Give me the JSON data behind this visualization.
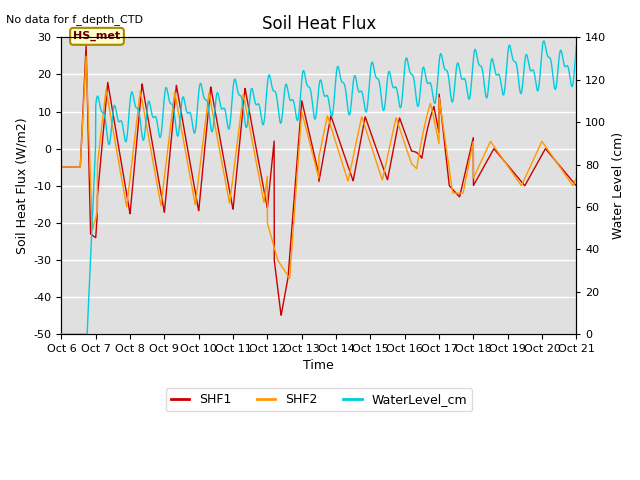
{
  "title": "Soil Heat Flux",
  "top_left_text": "No data for f_depth_CTD",
  "annotation_box": "HS_met",
  "ylabel_left": "Soil Heat Flux (W/m2)",
  "ylabel_right": "Water Level (cm)",
  "xlabel": "Time",
  "ylim_left": [
    -50,
    30
  ],
  "ylim_right": [
    0,
    140
  ],
  "background_color": "#e0e0e0",
  "fig_background": "#ffffff",
  "shf1_color": "#cc0000",
  "shf2_color": "#ff9900",
  "water_color": "#00ccdd",
  "legend_shf1": "SHF1",
  "legend_shf2": "SHF2",
  "legend_water": "WaterLevel_cm",
  "x_tick_labels": [
    "Oct 6",
    "Oct 7",
    "Oct 8",
    "Oct 9",
    "Oct 10",
    "Oct 11",
    "Oct 12",
    "Oct 13",
    "Oct 14",
    "Oct 15",
    "Oct 16",
    "Oct 17",
    "Oct 18",
    "Oct 19",
    "Oct 20",
    "Oct 21"
  ],
  "yticks_left": [
    -50,
    -40,
    -30,
    -20,
    -10,
    0,
    10,
    20,
    30
  ],
  "yticks_right": [
    0,
    20,
    40,
    60,
    80,
    100,
    120,
    140
  ],
  "grid_color": "#ffffff",
  "title_fontsize": 12,
  "axis_fontsize": 9,
  "tick_fontsize": 8
}
